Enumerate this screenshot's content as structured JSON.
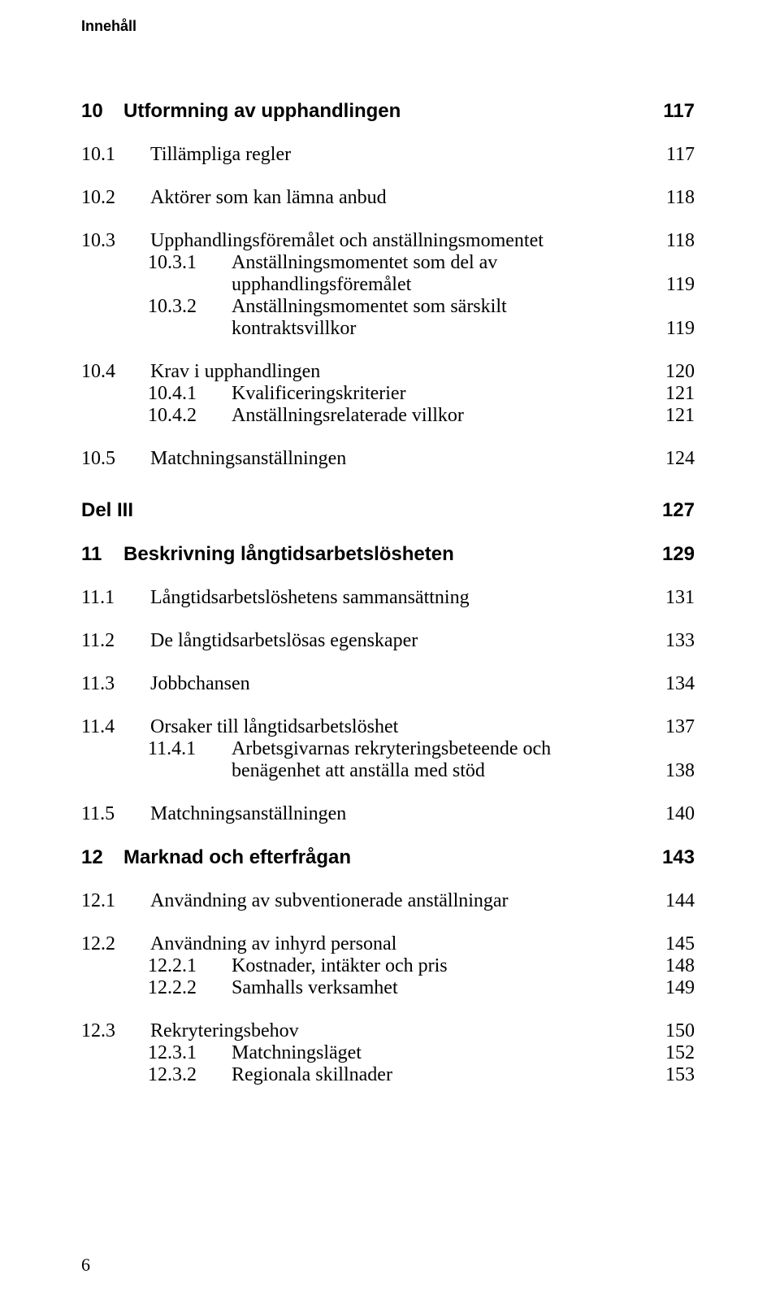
{
  "running_head": "Innehåll",
  "page_number": "6",
  "font": {
    "body_family": "Garamond",
    "heading_family": "Arial",
    "body_size_pt": 24,
    "heading_size_pt": 24,
    "running_head_size_pt": 18
  },
  "colors": {
    "text": "#000000",
    "background": "#ffffff"
  },
  "toc": {
    "c10": {
      "num": "10",
      "title": "Utformning av upphandlingen",
      "page": "117",
      "s1": {
        "num": "10.1",
        "title": "Tillämpliga regler",
        "page": "117"
      },
      "s2": {
        "num": "10.2",
        "title": "Aktörer som kan lämna anbud",
        "page": "118"
      },
      "s3": {
        "num": "10.3",
        "title": "Upphandlingsföremålet och anställningsmomentet",
        "page": "118",
        "ss1": {
          "num": "10.3.1",
          "title_a": "Anställningsmomentet som del av",
          "title_b": "upphandlingsföremålet",
          "page": "119"
        },
        "ss2": {
          "num": "10.3.2",
          "title_a": "Anställningsmomentet som särskilt",
          "title_b": "kontraktsvillkor",
          "page": "119"
        }
      },
      "s4": {
        "num": "10.4",
        "title": "Krav i upphandlingen",
        "page": "120",
        "ss1": {
          "num": "10.4.1",
          "title": "Kvalificeringskriterier",
          "page": "121"
        },
        "ss2": {
          "num": "10.4.2",
          "title": "Anställningsrelaterade villkor",
          "page": "121"
        }
      },
      "s5": {
        "num": "10.5",
        "title": "Matchningsanställningen",
        "page": "124"
      }
    },
    "part3": {
      "title": "Del III",
      "page": "127"
    },
    "c11": {
      "num": "11",
      "title": "Beskrivning långtidsarbetslösheten",
      "page": "129",
      "s1": {
        "num": "11.1",
        "title": "Långtidsarbetslöshetens sammansättning",
        "page": "131"
      },
      "s2": {
        "num": "11.2",
        "title": "De långtidsarbetslösas egenskaper",
        "page": "133"
      },
      "s3": {
        "num": "11.3",
        "title": "Jobbchansen",
        "page": "134"
      },
      "s4": {
        "num": "11.4",
        "title": "Orsaker till långtidsarbetslöshet",
        "page": "137",
        "ss1": {
          "num": "11.4.1",
          "title_a": "Arbetsgivarnas rekryteringsbeteende och",
          "title_b": "benägenhet att anställa med stöd",
          "page": "138"
        }
      },
      "s5": {
        "num": "11.5",
        "title": "Matchningsanställningen",
        "page": "140"
      }
    },
    "c12": {
      "num": "12",
      "title": "Marknad och efterfrågan",
      "page": "143",
      "s1": {
        "num": "12.1",
        "title": "Användning av subventionerade anställningar",
        "page": "144"
      },
      "s2": {
        "num": "12.2",
        "title": "Användning av inhyrd personal",
        "page": "145",
        "ss1": {
          "num": "12.2.1",
          "title": "Kostnader, intäkter och pris",
          "page": "148"
        },
        "ss2": {
          "num": "12.2.2",
          "title": "Samhalls verksamhet",
          "page": "149"
        }
      },
      "s3": {
        "num": "12.3",
        "title": "Rekryteringsbehov",
        "page": "150",
        "ss1": {
          "num": "12.3.1",
          "title": "Matchningsläget",
          "page": "152"
        },
        "ss2": {
          "num": "12.3.2",
          "title": "Regionala skillnader",
          "page": "153"
        }
      }
    }
  }
}
